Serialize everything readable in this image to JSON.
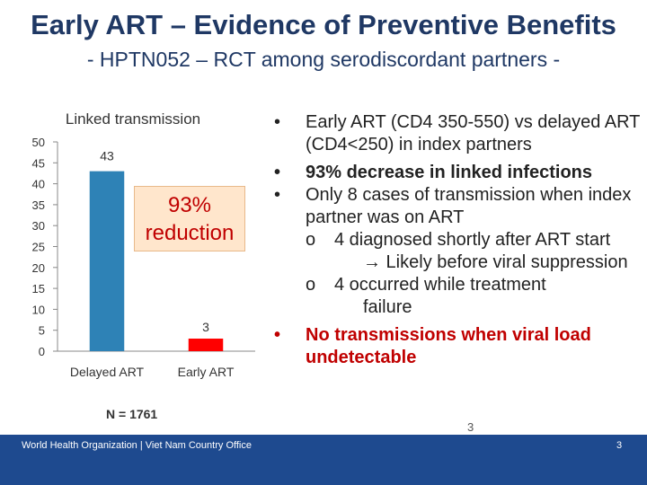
{
  "slide": {
    "title": "Early ART – Evidence of Preventive Benefits",
    "subtitle": "- HPTN052 – RCT among serodiscordant partners -",
    "callout": "93% reduction",
    "n_label": "N = 1761",
    "page_number": "3"
  },
  "chart_data": {
    "type": "bar",
    "title": "Linked transmission",
    "categories": [
      "Delayed ART",
      "Early ART"
    ],
    "values": [
      43,
      3
    ],
    "data_labels": [
      "43",
      "3"
    ],
    "ylim": [
      0,
      50
    ],
    "yticks": [
      0,
      5,
      10,
      15,
      20,
      25,
      30,
      35,
      40,
      45,
      50
    ],
    "grid": false,
    "colors": [
      "#2e82b6",
      "#ff0000"
    ]
  },
  "bullets": {
    "items": [
      {
        "marker": "•",
        "text": "Early ART (CD4 350-550) vs delayed ART (CD4<250) in index partners"
      },
      {
        "marker": "•",
        "text": "93% decrease in linked infections"
      },
      {
        "marker": "•",
        "text": "Only 8 cases of transmission when index partner was on ART"
      },
      {
        "marker": "•",
        "text": "No transmissions when viral load undetectable"
      }
    ],
    "sub_marker": "o",
    "sub_items": [
      {
        "line1": "4 diagnosed shortly after ART start",
        "line2": "→ Likely before viral suppression"
      },
      {
        "line1": "4  occurred while treatment",
        "line2": "failure"
      }
    ]
  },
  "footer": {
    "org": "World Health Organization | Viet Nam Country Office",
    "page": "3"
  },
  "colors": {
    "title": "#1f3864",
    "accent_red": "#c00000",
    "footer_bg": "#1e4a8f"
  }
}
